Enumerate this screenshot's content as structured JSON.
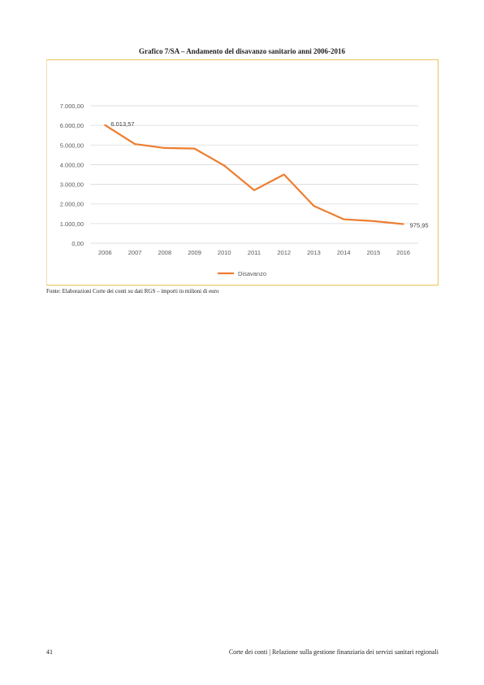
{
  "title": "Grafico 7/SA – Andamento del disavanzo sanitario anni 2006-2016",
  "source": "Fonte: Elaborazioni Corte dei conti su dati RGS – importi in milioni di euro",
  "footer": {
    "page_number": "41",
    "text": "Corte dei conti | Relazione sulla gestione finanziaria dei servizi sanitari regionali"
  },
  "chart_data": {
    "type": "line",
    "title": "",
    "xlabel": "",
    "ylabel": "",
    "categories": [
      "2006",
      "2007",
      "2008",
      "2009",
      "2010",
      "2011",
      "2012",
      "2013",
      "2014",
      "2015",
      "2016"
    ],
    "series": [
      {
        "name": "Disavanzo",
        "values": [
          6013.57,
          5050,
          4850,
          4820,
          3950,
          2700,
          3500,
          1900,
          1220,
          1130,
          975.95
        ],
        "color": "#ed7d31"
      }
    ],
    "y_ticks": [
      "0,00",
      "1.000,00",
      "2.000,00",
      "3.000,00",
      "4.000,00",
      "5.000,00",
      "6.000,00",
      "7.000,00"
    ],
    "ylim": [
      0,
      7000
    ],
    "data_labels": [
      {
        "index": 0,
        "text": "6.013,57"
      },
      {
        "index": 10,
        "text": "975,95"
      }
    ],
    "grid": true,
    "legend_position": "bottom"
  }
}
